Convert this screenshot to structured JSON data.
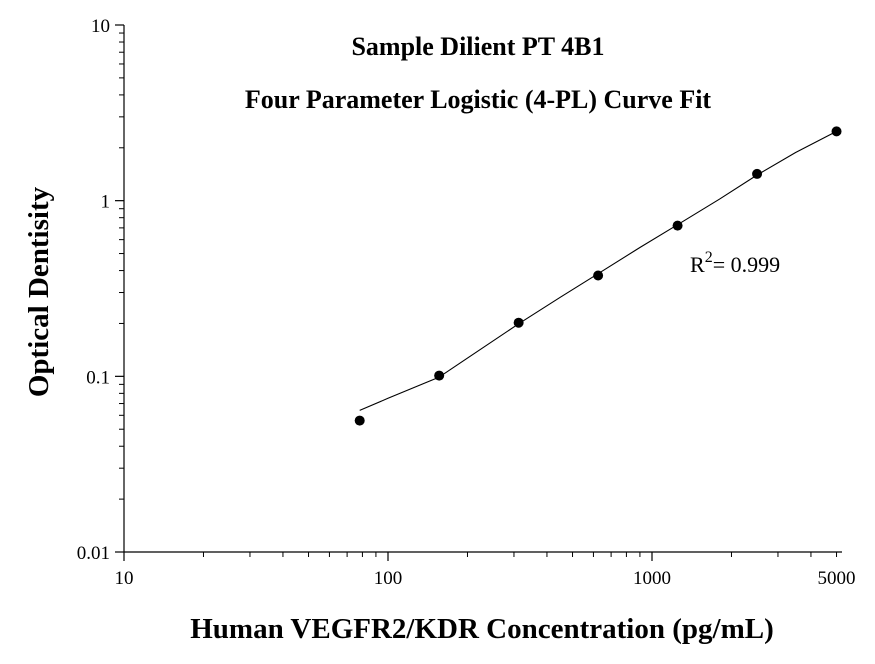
{
  "chart_data": {
    "type": "scatter",
    "title": "Sample Dilient PT 4B1",
    "subtitle": "Four Parameter Logistic (4-PL) Curve Fit",
    "xlabel": "Human VEGFR2/KDR Concentration (pg/mL)",
    "ylabel": "Optical Dentisity",
    "x_scale": "log",
    "y_scale": "log",
    "xlim": [
      10,
      5000
    ],
    "ylim": [
      0.01,
      10
    ],
    "x_ticks": [
      {
        "value": 10,
        "label": "10"
      },
      {
        "value": 100,
        "label": "100"
      },
      {
        "value": 1000,
        "label": "1000"
      },
      {
        "value": 5000,
        "label": "5000"
      }
    ],
    "y_ticks": [
      {
        "value": 0.01,
        "label": "0.01"
      },
      {
        "value": 0.1,
        "label": "0.1"
      },
      {
        "value": 1,
        "label": "1"
      },
      {
        "value": 10,
        "label": "10"
      }
    ],
    "grid": false,
    "legend": "none",
    "points": {
      "x": [
        78.125,
        156.25,
        312.5,
        625,
        1250,
        2500,
        5000
      ],
      "y": [
        0.056,
        0.101,
        0.202,
        0.375,
        0.721,
        1.42,
        2.48
      ]
    },
    "fit_curve": {
      "name": "4-PL fit",
      "x": [
        78.125,
        100,
        156.25,
        200,
        312.5,
        450,
        625,
        900,
        1250,
        1800,
        2500,
        3500,
        5000
      ],
      "y": [
        0.064,
        0.075,
        0.099,
        0.127,
        0.199,
        0.282,
        0.384,
        0.541,
        0.73,
        1.02,
        1.4,
        1.88,
        2.48
      ]
    },
    "annotation": {
      "base": "R",
      "superscript": "2",
      "text": "= 0.999"
    },
    "colors": {
      "axis": "#000000",
      "points": "#000000",
      "curve": "#000000"
    }
  }
}
